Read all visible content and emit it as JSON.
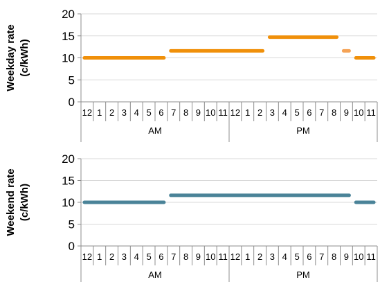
{
  "chart_data": [
    {
      "type": "line",
      "ylabel": "Weekday rate",
      "ylabel_unit": "(c/kWh)",
      "yticks": [
        "0",
        "5",
        "10",
        "15",
        "20"
      ],
      "ylim": [
        0,
        20
      ],
      "grid": true,
      "hours": [
        "12",
        "1",
        "2",
        "3",
        "4",
        "5",
        "6",
        "7",
        "8",
        "9",
        "10",
        "11",
        "12",
        "1",
        "2",
        "3",
        "4",
        "5",
        "6",
        "7",
        "8",
        "9",
        "10",
        "11"
      ],
      "groups": [
        "AM",
        "PM"
      ],
      "segments": [
        {
          "start": "12",
          "end": "6",
          "start_period": "AM",
          "end_period": "AM",
          "value": 10,
          "color": "#f0900a"
        },
        {
          "start": "7",
          "end": "2",
          "start_period": "AM",
          "end_period": "PM",
          "value": 11.6,
          "color": "#f0900a"
        },
        {
          "start": "3",
          "end": "8",
          "start_period": "PM",
          "end_period": "PM",
          "value": 14.7,
          "color": "#f0900a"
        },
        {
          "start": "9",
          "end": "9",
          "start_period": "PM",
          "end_period": "PM",
          "value": 11.6,
          "color": "#f5a356"
        },
        {
          "start": "10",
          "end": "11",
          "start_period": "PM",
          "end_period": "PM",
          "value": 10,
          "color": "#f0900a"
        }
      ]
    },
    {
      "type": "line",
      "ylabel": "Weekend rate",
      "ylabel_unit": "(c/kWh)",
      "yticks": [
        "0",
        "5",
        "10",
        "15",
        "20"
      ],
      "ylim": [
        0,
        20
      ],
      "grid": true,
      "hours": [
        "12",
        "1",
        "2",
        "3",
        "4",
        "5",
        "6",
        "7",
        "8",
        "9",
        "10",
        "11",
        "12",
        "1",
        "2",
        "3",
        "4",
        "5",
        "6",
        "7",
        "8",
        "9",
        "10",
        "11"
      ],
      "groups": [
        "AM",
        "PM"
      ],
      "segments": [
        {
          "start": "12",
          "end": "6",
          "start_period": "AM",
          "end_period": "AM",
          "value": 10,
          "color": "#4a8398"
        },
        {
          "start": "7",
          "end": "9",
          "start_period": "AM",
          "end_period": "PM",
          "value": 11.6,
          "color": "#4a8398"
        },
        {
          "start": "10",
          "end": "11",
          "start_period": "PM",
          "end_period": "PM",
          "value": 10,
          "color": "#4a8398"
        }
      ]
    }
  ]
}
